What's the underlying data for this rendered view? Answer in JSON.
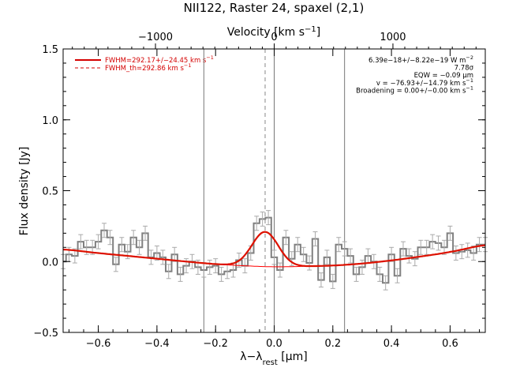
{
  "chart_data": {
    "type": "line",
    "title": "NII122, Raster 24, spaxel (2,1)",
    "xlabel": {
      "main": "λ−λ",
      "sub": "rest",
      "unit": " [μm]"
    },
    "ylabel": "Flux density [Jy]",
    "top_axis": {
      "label_main": "Velocity [km s",
      "label_sup": "−1",
      "label_end": "]",
      "ticks": [
        -1000,
        0,
        1000
      ],
      "tick_labels": [
        "−1000",
        "0",
        "1000"
      ],
      "um_per_kms": 0.000405
    },
    "xlim": [
      -0.72,
      0.72
    ],
    "ylim": [
      -0.5,
      1.5
    ],
    "xticks": [
      -0.6,
      -0.4,
      -0.2,
      0.0,
      0.2,
      0.4,
      0.6
    ],
    "xtick_labels": [
      "−0.6",
      "−0.4",
      "−0.2",
      "0.0",
      "0.2",
      "0.4",
      "0.6"
    ],
    "yticks": [
      -0.5,
      0.0,
      0.5,
      1.0,
      1.5
    ],
    "ytick_labels": [
      "−0.5",
      "0.0",
      "0.5",
      "1.0",
      "1.5"
    ],
    "grid": false,
    "vertical_lines": [
      -0.24,
      0.0,
      0.24
    ],
    "dashed_line_x": -0.031,
    "spectrum": {
      "color": "#808080",
      "x": [
        -0.72,
        -0.7,
        -0.68,
        -0.66,
        -0.64,
        -0.62,
        -0.6,
        -0.58,
        -0.56,
        -0.54,
        -0.52,
        -0.5,
        -0.48,
        -0.46,
        -0.44,
        -0.42,
        -0.4,
        -0.38,
        -0.36,
        -0.34,
        -0.32,
        -0.3,
        -0.28,
        -0.26,
        -0.24,
        -0.22,
        -0.2,
        -0.18,
        -0.16,
        -0.14,
        -0.12,
        -0.1,
        -0.08,
        -0.06,
        -0.04,
        -0.02,
        0.0,
        0.02,
        0.04,
        0.06,
        0.08,
        0.1,
        0.12,
        0.14,
        0.16,
        0.18,
        0.2,
        0.22,
        0.24,
        0.26,
        0.28,
        0.3,
        0.32,
        0.34,
        0.36,
        0.38,
        0.4,
        0.42,
        0.44,
        0.46,
        0.48,
        0.5,
        0.52,
        0.54,
        0.56,
        0.58,
        0.6,
        0.62,
        0.64,
        0.66,
        0.68,
        0.7,
        0.72
      ],
      "y": [
        0.0,
        0.05,
        0.04,
        0.14,
        0.1,
        0.1,
        0.14,
        0.22,
        0.17,
        -0.02,
        0.12,
        0.07,
        0.17,
        0.1,
        0.2,
        0.03,
        0.06,
        0.03,
        -0.07,
        0.05,
        -0.09,
        -0.03,
        0.0,
        -0.04,
        -0.06,
        -0.04,
        -0.03,
        -0.09,
        -0.07,
        -0.06,
        0.01,
        -0.03,
        0.06,
        0.27,
        0.3,
        0.31,
        0.03,
        -0.06,
        0.17,
        0.02,
        0.12,
        0.05,
        -0.01,
        0.16,
        -0.13,
        0.03,
        -0.14,
        0.12,
        0.09,
        0.04,
        -0.09,
        -0.04,
        0.04,
        0.0,
        -0.09,
        -0.15,
        0.05,
        -0.1,
        0.09,
        0.04,
        0.02,
        0.1,
        0.1,
        0.14,
        0.13,
        0.1,
        0.2,
        0.06,
        0.07,
        0.08,
        0.06,
        0.12,
        0.12
      ],
      "err": 0.05
    },
    "continuum": {
      "color": "#ff0000",
      "x": [
        -0.72,
        -0.6,
        -0.5,
        -0.4,
        -0.3,
        -0.2,
        -0.1,
        0.0,
        0.1,
        0.2,
        0.3,
        0.4,
        0.5,
        0.6,
        0.72
      ],
      "y": [
        0.085,
        0.06,
        0.04,
        0.02,
        0.0,
        -0.018,
        -0.03,
        -0.037,
        -0.034,
        -0.028,
        -0.014,
        0.008,
        0.036,
        0.068,
        0.115
      ]
    },
    "fit": {
      "color": "#dd1100",
      "center": -0.031,
      "sigma": 0.045,
      "amplitude": 0.245
    },
    "legend": {
      "position": "top-left",
      "entries": [
        {
          "main": "FWHM=292.17+/−24.45 km s",
          "sup": "−1"
        },
        {
          "main": "FWHM_th=292.86 km s",
          "sup": "−1"
        }
      ]
    },
    "annotations": [
      {
        "main": "6.39e−18+/−8.22e−19 W m",
        "sup": "−2"
      },
      {
        "main": "7.78σ",
        "sup": ""
      },
      {
        "main": "EQW = −0.09 μm",
        "sup": ""
      },
      {
        "main": "v = −76.93+/−14.79 km s",
        "sup": "−1"
      },
      {
        "main": "Broadening = 0.00+/−0.00 km s",
        "sup": "−1"
      }
    ]
  }
}
